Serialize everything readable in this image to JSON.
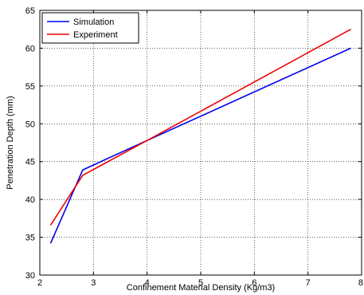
{
  "chart_data": {
    "type": "line",
    "title": "",
    "xlabel": "Confinement Material Density (Kg/m3)",
    "ylabel": "Penetration  Depth (mm)",
    "xlim": [
      2,
      8
    ],
    "ylim": [
      30,
      65
    ],
    "x_ticks": [
      "2",
      "3",
      "4",
      "5",
      "6",
      "7",
      "8"
    ],
    "y_ticks": [
      "30",
      "35",
      "40",
      "45",
      "50",
      "55",
      "60",
      "65"
    ],
    "grid": true,
    "legend_position": "top-left",
    "series": [
      {
        "name": "Simulation",
        "color": "#0000ee",
        "x": [
          2.2,
          2.8,
          4.0,
          7.8
        ],
        "y": [
          34.2,
          43.9,
          47.8,
          60.0
        ]
      },
      {
        "name": "Experiment",
        "color": "#ee0000",
        "x": [
          2.2,
          2.8,
          4.0,
          7.8
        ],
        "y": [
          36.6,
          43.2,
          47.8,
          62.5
        ]
      }
    ]
  }
}
